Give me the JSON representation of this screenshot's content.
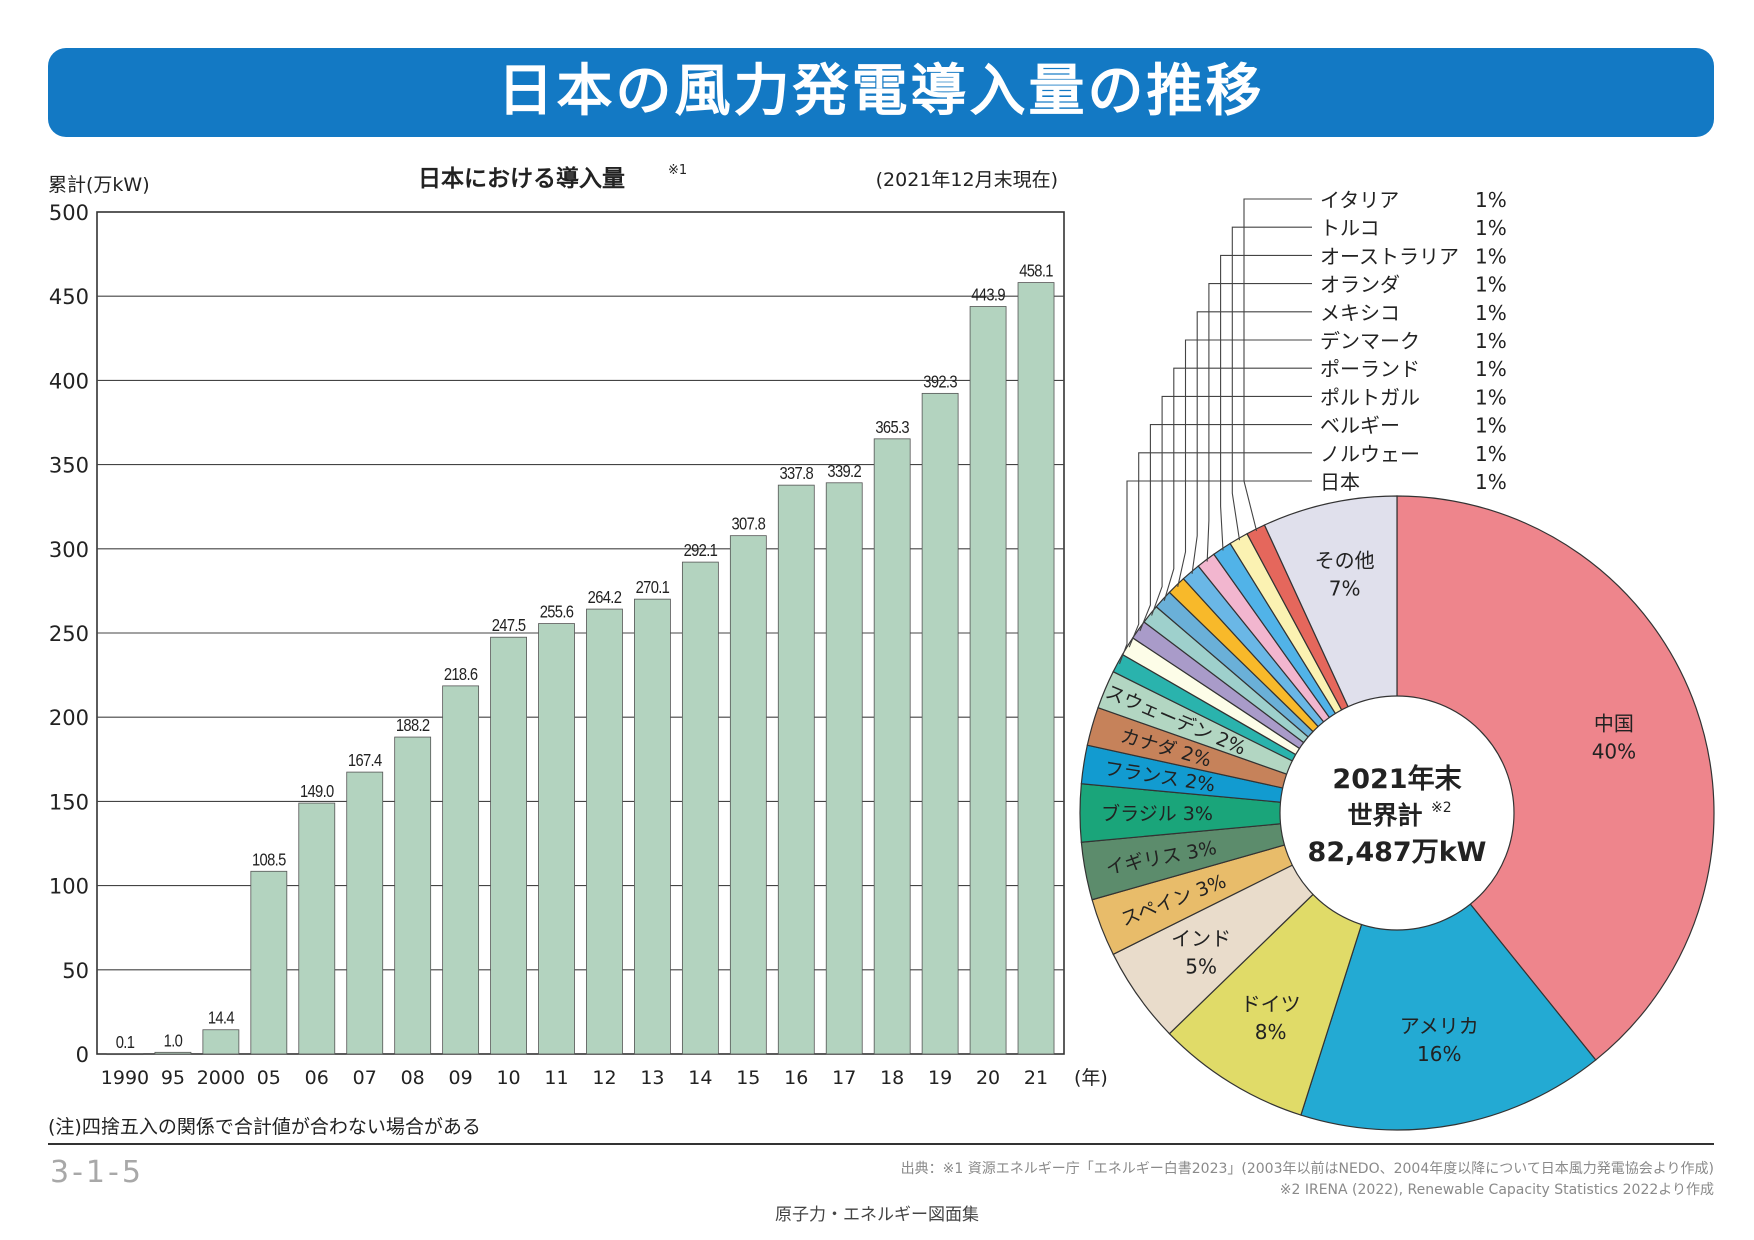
{
  "title": "日本の風力発電導入量の推移",
  "note": "(注)四捨五入の関係で合計値が合わない場合がある",
  "page_number": "3-1-5",
  "source_line1": "出典：※1 資源エネルギー庁「エネルギー白書2023」(2003年以前はNEDO、2004年度以降について日本風力発電協会より作成)",
  "source_line2": "※2 IRENA (2022), Renewable Capacity Statistics 2022より作成",
  "footer_title": "原子力・エネルギー図面集",
  "colors": {
    "title_bg": "#1379c4",
    "bar": "#b3d3bf"
  },
  "chart_data": [
    {
      "type": "bar",
      "title": "日本における導入量",
      "title_note": "※1",
      "date_note": "(2021年12月末現在)",
      "ylabel": "累計(万kW)",
      "xlabel": "(年)",
      "ylim": [
        0,
        500
      ],
      "yticks": [
        0,
        50,
        100,
        150,
        200,
        250,
        300,
        350,
        400,
        450,
        500
      ],
      "categories": [
        "1990",
        "95",
        "2000",
        "05",
        "06",
        "07",
        "08",
        "09",
        "10",
        "11",
        "12",
        "13",
        "14",
        "15",
        "16",
        "17",
        "18",
        "19",
        "20",
        "21"
      ],
      "values": [
        0.1,
        1.0,
        14.4,
        108.5,
        149.0,
        167.4,
        188.2,
        218.6,
        247.5,
        255.6,
        264.2,
        270.1,
        292.1,
        307.8,
        337.8,
        339.2,
        365.3,
        392.3,
        443.9,
        458.1
      ],
      "value_labels": [
        "0.1",
        "1.0",
        "14.4",
        "108.5",
        "149.0",
        "167.4",
        "188.2",
        "218.6",
        "247.5",
        "255.6",
        "264.2",
        "270.1",
        "292.1",
        "307.8",
        "337.8",
        "339.2",
        "365.3",
        "392.3",
        "443.9",
        "458.1"
      ]
    },
    {
      "type": "pie",
      "center_label_line1": "2021年末",
      "center_label_line2": "世界計",
      "center_label_note": "※2",
      "center_label_line3": "82,487万kW",
      "slices": [
        {
          "name": "中国",
          "pct": "40%",
          "value": 40,
          "color": "#ee858c"
        },
        {
          "name": "アメリカ",
          "pct": "16%",
          "value": 16,
          "color": "#23aad3"
        },
        {
          "name": "ドイツ",
          "pct": "8%",
          "value": 8,
          "color": "#e0db68"
        },
        {
          "name": "インド",
          "pct": "5%",
          "value": 5,
          "color": "#e9dccb"
        },
        {
          "name": "スペイン",
          "pct": "3%",
          "value": 3,
          "color": "#e8bc6a"
        },
        {
          "name": "イギリス",
          "pct": "3%",
          "value": 3,
          "color": "#5c8c6c"
        },
        {
          "name": "ブラジル",
          "pct": "3%",
          "value": 3,
          "color": "#1aa57a"
        },
        {
          "name": "フランス",
          "pct": "2%",
          "value": 2,
          "color": "#129bd0"
        },
        {
          "name": "カナダ",
          "pct": "2%",
          "value": 2,
          "color": "#c6825a"
        },
        {
          "name": "スウェーデン",
          "pct": "2%",
          "value": 2,
          "color": "#b2d6c2"
        },
        {
          "name": "日本",
          "pct": "1%",
          "value": 1,
          "color": "#2ab3ad"
        },
        {
          "name": "ノルウェー",
          "pct": "1%",
          "value": 1,
          "color": "#fdfde8"
        },
        {
          "name": "ベルギー",
          "pct": "1%",
          "value": 1,
          "color": "#a99bc9"
        },
        {
          "name": "ポルトガル",
          "pct": "1%",
          "value": 1,
          "color": "#9ed0cc"
        },
        {
          "name": "ポーランド",
          "pct": "1%",
          "value": 1,
          "color": "#6ab0d8"
        },
        {
          "name": "デンマーク",
          "pct": "1%",
          "value": 1,
          "color": "#f8b92a"
        },
        {
          "name": "メキシコ",
          "pct": "1%",
          "value": 1,
          "color": "#6ab7e6"
        },
        {
          "name": "オランダ",
          "pct": "1%",
          "value": 1,
          "color": "#f2b6cf"
        },
        {
          "name": "オーストラリア",
          "pct": "1%",
          "value": 1,
          "color": "#51b3e8"
        },
        {
          "name": "トルコ",
          "pct": "1%",
          "value": 1,
          "color": "#fbf2b2"
        },
        {
          "name": "イタリア",
          "pct": "1%",
          "value": 1,
          "color": "#e5675c"
        },
        {
          "name": "その他",
          "pct": "7%",
          "value": 7,
          "color": "#e0e0ec"
        }
      ]
    }
  ]
}
